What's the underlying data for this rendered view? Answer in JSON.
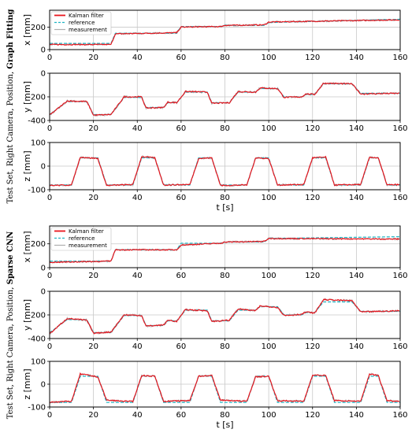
{
  "figure": {
    "groups": [
      {
        "side_label_prefix": "Test Set, Right Camera, Position, ",
        "side_label_bold": "Graph Fitting"
      },
      {
        "side_label_prefix": "Test Set, Right Camera, Position, ",
        "side_label_bold": "Sparse CNN"
      }
    ],
    "colors": {
      "kalman": "#e8141c",
      "reference": "#1fb3c2",
      "measurement": "#aeaeae",
      "grid": "#c8c8c8"
    }
  },
  "chart_data": [
    {
      "type": "line",
      "panel": "gf-x",
      "xlabel": "",
      "ylabel": "x [mm]",
      "xlim": [
        0,
        160
      ],
      "ylim": [
        0,
        350
      ],
      "yticks": [
        0,
        200
      ],
      "xticks": [
        0,
        20,
        40,
        60,
        80,
        100,
        120,
        140,
        160
      ],
      "legend": [
        "Kalman filter",
        "reference",
        "measurement"
      ],
      "legend_position": "top-left",
      "reference": [
        [
          0,
          55
        ],
        [
          28,
          55
        ],
        [
          30,
          145
        ],
        [
          58,
          145
        ],
        [
          60,
          205
        ],
        [
          78,
          205
        ],
        [
          80,
          215
        ],
        [
          98,
          215
        ],
        [
          100,
          240
        ],
        [
          160,
          270
        ]
      ],
      "kalman": [
        [
          0,
          45
        ],
        [
          28,
          45
        ],
        [
          30,
          140
        ],
        [
          58,
          150
        ],
        [
          60,
          200
        ],
        [
          78,
          205
        ],
        [
          80,
          215
        ],
        [
          98,
          220
        ],
        [
          100,
          245
        ],
        [
          160,
          265
        ]
      ]
    },
    {
      "type": "line",
      "panel": "gf-y",
      "xlabel": "",
      "ylabel": "y [mm]",
      "xlim": [
        0,
        160
      ],
      "ylim": [
        -400,
        0
      ],
      "yticks": [
        -400,
        -200,
        0
      ],
      "xticks": [
        0,
        20,
        40,
        60,
        80,
        100,
        120,
        140,
        160
      ],
      "reference": [
        [
          0,
          -350
        ],
        [
          8,
          -240
        ],
        [
          17,
          -240
        ],
        [
          20,
          -350
        ],
        [
          28,
          -350
        ],
        [
          34,
          -205
        ],
        [
          42,
          -205
        ],
        [
          44,
          -290
        ],
        [
          52,
          -290
        ],
        [
          54,
          -250
        ],
        [
          58,
          -250
        ],
        [
          62,
          -160
        ],
        [
          72,
          -160
        ],
        [
          74,
          -250
        ],
        [
          82,
          -250
        ],
        [
          86,
          -160
        ],
        [
          94,
          -160
        ],
        [
          96,
          -130
        ],
        [
          104,
          -130
        ],
        [
          107,
          -200
        ],
        [
          115,
          -200
        ],
        [
          117,
          -180
        ],
        [
          121,
          -180
        ],
        [
          125,
          -90
        ],
        [
          138,
          -90
        ],
        [
          142,
          -170
        ],
        [
          160,
          -170
        ]
      ],
      "kalman": [
        [
          0,
          -355
        ],
        [
          8,
          -235
        ],
        [
          17,
          -240
        ],
        [
          20,
          -355
        ],
        [
          28,
          -350
        ],
        [
          34,
          -200
        ],
        [
          42,
          -200
        ],
        [
          44,
          -295
        ],
        [
          52,
          -290
        ],
        [
          54,
          -245
        ],
        [
          58,
          -250
        ],
        [
          62,
          -155
        ],
        [
          72,
          -160
        ],
        [
          74,
          -255
        ],
        [
          82,
          -250
        ],
        [
          86,
          -155
        ],
        [
          94,
          -160
        ],
        [
          96,
          -125
        ],
        [
          104,
          -130
        ],
        [
          107,
          -205
        ],
        [
          115,
          -200
        ],
        [
          117,
          -175
        ],
        [
          121,
          -180
        ],
        [
          125,
          -85
        ],
        [
          138,
          -90
        ],
        [
          142,
          -175
        ],
        [
          160,
          -170
        ]
      ]
    },
    {
      "type": "line",
      "panel": "gf-z",
      "xlabel": "t [s]",
      "ylabel": "z [mm]",
      "xlim": [
        0,
        160
      ],
      "ylim": [
        -100,
        100
      ],
      "yticks": [
        -100,
        0,
        100
      ],
      "xticks": [
        0,
        20,
        40,
        60,
        80,
        100,
        120,
        140,
        160
      ],
      "reference": [
        [
          0,
          -80
        ],
        [
          10,
          -80
        ],
        [
          14,
          35
        ],
        [
          22,
          35
        ],
        [
          26,
          -80
        ],
        [
          38,
          -80
        ],
        [
          42,
          35
        ],
        [
          48,
          35
        ],
        [
          52,
          -80
        ],
        [
          64,
          -80
        ],
        [
          68,
          35
        ],
        [
          74,
          35
        ],
        [
          78,
          -80
        ],
        [
          90,
          -80
        ],
        [
          94,
          35
        ],
        [
          100,
          35
        ],
        [
          104,
          -80
        ],
        [
          116,
          -80
        ],
        [
          120,
          35
        ],
        [
          126,
          35
        ],
        [
          130,
          -80
        ],
        [
          142,
          -80
        ],
        [
          146,
          35
        ],
        [
          150,
          35
        ],
        [
          154,
          -80
        ],
        [
          160,
          -80
        ]
      ],
      "kalman": [
        [
          0,
          -82
        ],
        [
          10,
          -80
        ],
        [
          14,
          38
        ],
        [
          22,
          32
        ],
        [
          26,
          -82
        ],
        [
          38,
          -78
        ],
        [
          42,
          40
        ],
        [
          48,
          35
        ],
        [
          52,
          -80
        ],
        [
          64,
          -78
        ],
        [
          68,
          32
        ],
        [
          74,
          35
        ],
        [
          78,
          -82
        ],
        [
          90,
          -80
        ],
        [
          94,
          35
        ],
        [
          100,
          32
        ],
        [
          104,
          -80
        ],
        [
          116,
          -78
        ],
        [
          120,
          35
        ],
        [
          126,
          38
        ],
        [
          130,
          -80
        ],
        [
          142,
          -78
        ],
        [
          146,
          38
        ],
        [
          150,
          35
        ],
        [
          154,
          -80
        ],
        [
          160,
          -78
        ]
      ]
    },
    {
      "type": "line",
      "panel": "cnn-x",
      "xlabel": "",
      "ylabel": "x [mm]",
      "xlim": [
        0,
        160
      ],
      "ylim": [
        0,
        350
      ],
      "yticks": [
        0,
        200
      ],
      "xticks": [
        0,
        20,
        40,
        60,
        80,
        100,
        120,
        140,
        160
      ],
      "legend": [
        "Kalman filter",
        "reference",
        "measurement"
      ],
      "legend_position": "top-left",
      "reference": [
        [
          0,
          55
        ],
        [
          28,
          55
        ],
        [
          30,
          150
        ],
        [
          58,
          150
        ],
        [
          60,
          205
        ],
        [
          78,
          205
        ],
        [
          80,
          215
        ],
        [
          98,
          215
        ],
        [
          100,
          245
        ],
        [
          160,
          260
        ]
      ],
      "kalman": [
        [
          0,
          45
        ],
        [
          28,
          55
        ],
        [
          30,
          150
        ],
        [
          58,
          150
        ],
        [
          60,
          190
        ],
        [
          78,
          205
        ],
        [
          80,
          215
        ],
        [
          98,
          220
        ],
        [
          100,
          245
        ],
        [
          160,
          240
        ]
      ]
    },
    {
      "type": "line",
      "panel": "cnn-y",
      "xlabel": "",
      "ylabel": "y [mm]",
      "xlim": [
        0,
        160
      ],
      "ylim": [
        -400,
        0
      ],
      "yticks": [
        -400,
        -200,
        0
      ],
      "xticks": [
        0,
        20,
        40,
        60,
        80,
        100,
        120,
        140,
        160
      ],
      "reference": [
        [
          0,
          -350
        ],
        [
          8,
          -240
        ],
        [
          17,
          -240
        ],
        [
          20,
          -350
        ],
        [
          28,
          -350
        ],
        [
          34,
          -205
        ],
        [
          42,
          -205
        ],
        [
          44,
          -290
        ],
        [
          52,
          -290
        ],
        [
          54,
          -250
        ],
        [
          58,
          -250
        ],
        [
          62,
          -160
        ],
        [
          72,
          -160
        ],
        [
          74,
          -250
        ],
        [
          82,
          -250
        ],
        [
          86,
          -160
        ],
        [
          94,
          -160
        ],
        [
          96,
          -130
        ],
        [
          104,
          -130
        ],
        [
          107,
          -200
        ],
        [
          115,
          -200
        ],
        [
          117,
          -180
        ],
        [
          121,
          -180
        ],
        [
          125,
          -90
        ],
        [
          138,
          -90
        ],
        [
          142,
          -170
        ],
        [
          160,
          -170
        ]
      ],
      "kalman": [
        [
          0,
          -360
        ],
        [
          8,
          -230
        ],
        [
          17,
          -245
        ],
        [
          20,
          -355
        ],
        [
          28,
          -345
        ],
        [
          34,
          -200
        ],
        [
          42,
          -205
        ],
        [
          44,
          -295
        ],
        [
          52,
          -285
        ],
        [
          54,
          -245
        ],
        [
          58,
          -255
        ],
        [
          62,
          -155
        ],
        [
          72,
          -165
        ],
        [
          74,
          -255
        ],
        [
          82,
          -245
        ],
        [
          86,
          -150
        ],
        [
          94,
          -165
        ],
        [
          96,
          -125
        ],
        [
          104,
          -135
        ],
        [
          107,
          -205
        ],
        [
          115,
          -195
        ],
        [
          117,
          -175
        ],
        [
          121,
          -185
        ],
        [
          125,
          -70
        ],
        [
          138,
          -80
        ],
        [
          142,
          -175
        ],
        [
          160,
          -165
        ]
      ]
    },
    {
      "type": "line",
      "panel": "cnn-z",
      "xlabel": "t [s]",
      "ylabel": "z [mm]",
      "xlim": [
        0,
        160
      ],
      "ylim": [
        -100,
        100
      ],
      "yticks": [
        -100,
        0,
        100
      ],
      "xticks": [
        0,
        20,
        40,
        60,
        80,
        100,
        120,
        140,
        160
      ],
      "reference": [
        [
          0,
          -80
        ],
        [
          10,
          -80
        ],
        [
          14,
          35
        ],
        [
          22,
          35
        ],
        [
          26,
          -80
        ],
        [
          38,
          -80
        ],
        [
          42,
          35
        ],
        [
          48,
          35
        ],
        [
          52,
          -80
        ],
        [
          64,
          -80
        ],
        [
          68,
          35
        ],
        [
          74,
          35
        ],
        [
          78,
          -80
        ],
        [
          90,
          -80
        ],
        [
          94,
          35
        ],
        [
          100,
          35
        ],
        [
          104,
          -80
        ],
        [
          116,
          -80
        ],
        [
          120,
          35
        ],
        [
          126,
          35
        ],
        [
          130,
          -80
        ],
        [
          142,
          -80
        ],
        [
          146,
          35
        ],
        [
          150,
          35
        ],
        [
          154,
          -80
        ],
        [
          160,
          -80
        ]
      ],
      "kalman": [
        [
          0,
          -78
        ],
        [
          10,
          -75
        ],
        [
          14,
          45
        ],
        [
          22,
          32
        ],
        [
          26,
          -70
        ],
        [
          38,
          -76
        ],
        [
          42,
          38
        ],
        [
          48,
          35
        ],
        [
          52,
          -75
        ],
        [
          64,
          -72
        ],
        [
          68,
          35
        ],
        [
          74,
          38
        ],
        [
          78,
          -70
        ],
        [
          90,
          -75
        ],
        [
          94,
          32
        ],
        [
          100,
          35
        ],
        [
          104,
          -72
        ],
        [
          116,
          -75
        ],
        [
          120,
          40
        ],
        [
          126,
          38
        ],
        [
          130,
          -72
        ],
        [
          142,
          -75
        ],
        [
          146,
          45
        ],
        [
          150,
          38
        ],
        [
          154,
          -72
        ],
        [
          160,
          -75
        ]
      ]
    }
  ]
}
